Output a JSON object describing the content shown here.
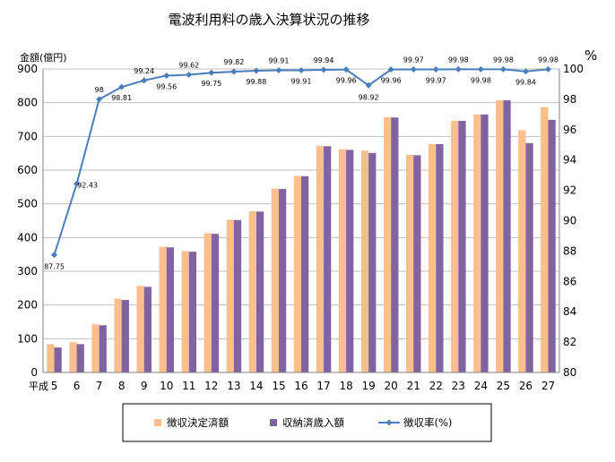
{
  "chart_data": {
    "type": "bar",
    "title": "電波利用料の歳入決算状況の推移",
    "y_left_label": "金額(億円)",
    "y_right_label": "%",
    "x_prefix": "平成",
    "categories": [
      "5",
      "6",
      "7",
      "8",
      "9",
      "10",
      "11",
      "12",
      "13",
      "14",
      "15",
      "16",
      "17",
      "18",
      "19",
      "20",
      "21",
      "22",
      "23",
      "24",
      "25",
      "26",
      "27"
    ],
    "y_left_lim": [
      0,
      900
    ],
    "y_left_ticks": [
      "0",
      "100",
      "200",
      "300",
      "400",
      "500",
      "600",
      "700",
      "800",
      "900"
    ],
    "y_right_lim": [
      80,
      100
    ],
    "y_right_ticks": [
      "80",
      "82",
      "84",
      "86",
      "88",
      "90",
      "92",
      "94",
      "96",
      "98",
      "100"
    ],
    "series": [
      {
        "name": "徴収決定済額",
        "type": "bar",
        "axis": "left",
        "color": "#FBBF8E",
        "values": [
          84,
          90,
          143,
          219,
          257,
          373,
          360,
          413,
          453,
          478,
          545,
          583,
          672,
          662,
          658,
          757,
          645,
          677,
          746,
          765,
          807,
          718,
          787
        ]
      },
      {
        "name": "収納済歳入額",
        "type": "bar",
        "axis": "left",
        "color": "#8064A2",
        "values": [
          74,
          84,
          140,
          215,
          254,
          371,
          358,
          411,
          452,
          477,
          544,
          582,
          671,
          660,
          651,
          756,
          644,
          677,
          746,
          765,
          807,
          680,
          749
        ]
      },
      {
        "name": "徴収率(%)",
        "type": "line",
        "axis": "right",
        "color": "#4A7EBB",
        "values": [
          87.75,
          92.43,
          98,
          98.81,
          99.24,
          99.56,
          99.62,
          99.75,
          99.82,
          99.88,
          99.91,
          99.91,
          99.94,
          99.96,
          98.92,
          99.96,
          99.97,
          99.97,
          99.98,
          99.98,
          99.98,
          99.84,
          99.98
        ],
        "labels": [
          "87.75",
          "92.43",
          "98",
          "98.81",
          "99.24",
          "99.56",
          "99.62",
          "99.75",
          "99.82",
          "99.88",
          "99.91",
          "99.91",
          "99.94",
          "99.96",
          "98.92",
          "99.96",
          "99.97",
          "99.97",
          "99.98",
          "99.98",
          "99.98",
          "99.84",
          "99.98"
        ]
      }
    ],
    "legend_position": "bottom",
    "grid": true
  }
}
